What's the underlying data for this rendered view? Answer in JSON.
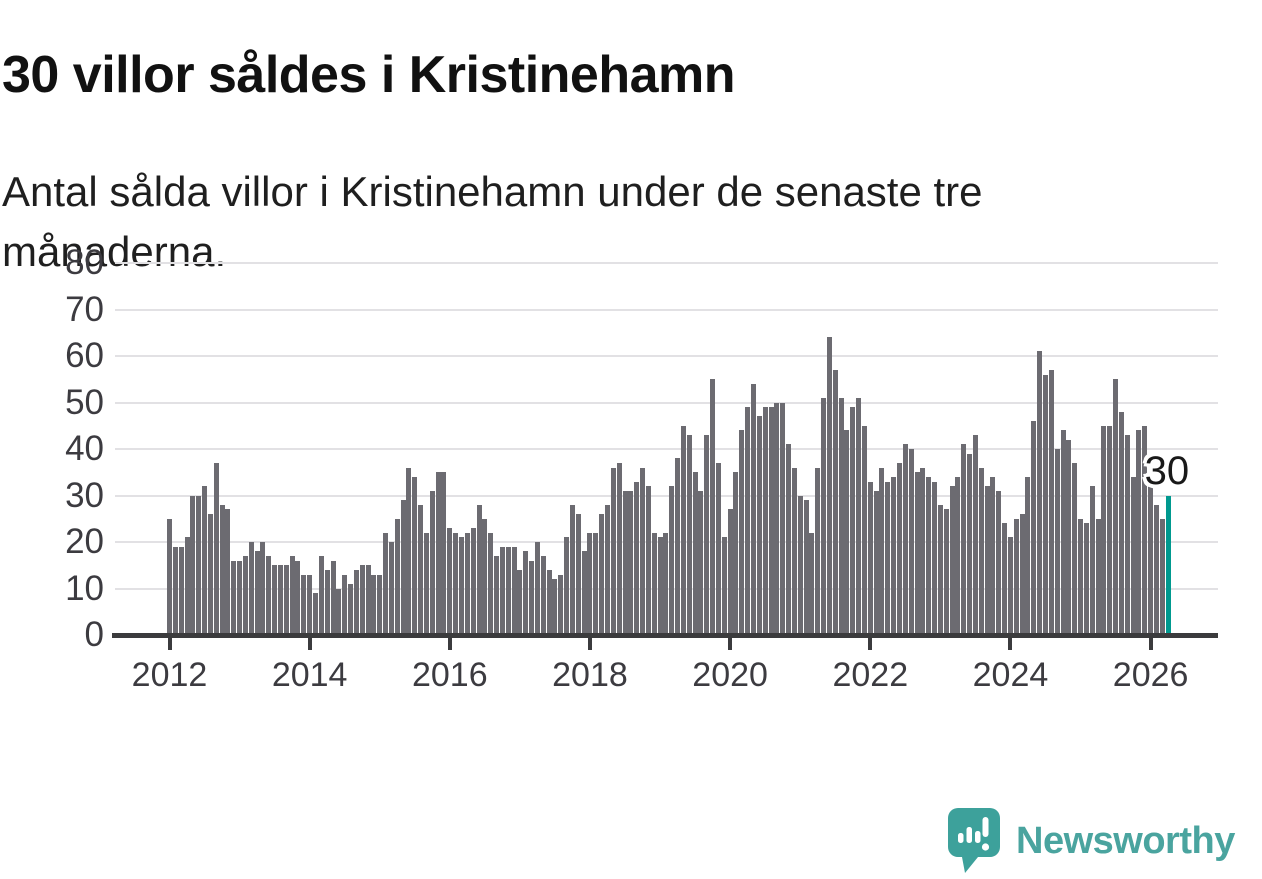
{
  "page": {
    "title": "30 villor såldes i Kristinehamn",
    "subtitle": "Antal sålda villor i Kristinehamn under de senaste tre månaderna."
  },
  "branding": {
    "name": "Newsworthy",
    "icon": "newsworthy-logo-icon",
    "text_color": "#4aa49f",
    "icon_color": "#3da19b"
  },
  "colors": {
    "bar": "#6c6b71",
    "highlight": "#00998f",
    "grid": "#e2e1e4",
    "axis": "#3b3b3d",
    "axis_label": "#3c3b40",
    "background": "#ffffff"
  },
  "chart_data": {
    "type": "bar",
    "title": "30 villor såldes i Kristinehamn",
    "subtitle": "Antal sålda villor i Kristinehamn under de senaste tre månaderna.",
    "x_start": "2012-01",
    "x_frequency": "monthly",
    "x_tick_labels": [
      "2012",
      "2014",
      "2016",
      "2018",
      "2020",
      "2022",
      "2024",
      "2026"
    ],
    "y_ticks": [
      0,
      10,
      20,
      30,
      40,
      50,
      60,
      70,
      80
    ],
    "ylim": [
      0,
      80
    ],
    "grid": "horizontal",
    "legend": "none",
    "highlight": {
      "position": "last",
      "color": "#00998f",
      "label": "30",
      "value": 30
    },
    "values": [
      25,
      19,
      19,
      21,
      30,
      30,
      32,
      26,
      37,
      28,
      27,
      16,
      16,
      17,
      20,
      18,
      20,
      17,
      15,
      15,
      15,
      17,
      16,
      13,
      13,
      9,
      17,
      14,
      16,
      10,
      13,
      11,
      14,
      15,
      15,
      13,
      13,
      22,
      20,
      25,
      29,
      36,
      34,
      28,
      22,
      31,
      35,
      35,
      23,
      22,
      21,
      22,
      23,
      28,
      25,
      22,
      17,
      19,
      19,
      19,
      14,
      18,
      16,
      20,
      17,
      14,
      12,
      13,
      21,
      28,
      26,
      18,
      22,
      22,
      26,
      28,
      36,
      37,
      31,
      31,
      33,
      36,
      32,
      22,
      21,
      22,
      32,
      38,
      45,
      43,
      35,
      31,
      43,
      55,
      37,
      21,
      27,
      35,
      44,
      49,
      54,
      47,
      49,
      49,
      50,
      50,
      41,
      36,
      30,
      29,
      22,
      36,
      51,
      64,
      57,
      51,
      44,
      49,
      51,
      45,
      33,
      31,
      36,
      33,
      34,
      37,
      41,
      40,
      35,
      36,
      34,
      33,
      28,
      27,
      32,
      34,
      41,
      39,
      43,
      36,
      32,
      34,
      31,
      24,
      21,
      25,
      26,
      34,
      46,
      61,
      56,
      57,
      40,
      44,
      42,
      37,
      25,
      24,
      32,
      25,
      45,
      45,
      55,
      48,
      43,
      34,
      44,
      45,
      33,
      28,
      25,
      30
    ]
  }
}
